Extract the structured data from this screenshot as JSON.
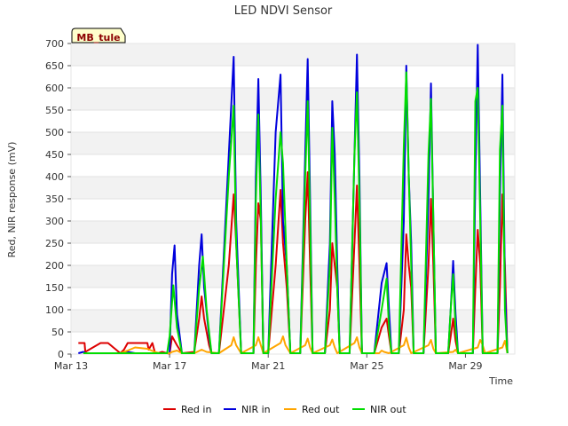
{
  "chart_data": {
    "type": "line",
    "title": "LED NDVI Sensor",
    "xlabel": "Time",
    "ylabel": "Red, NIR response (mV)",
    "site_label": "MB_tule",
    "ylim": [
      0,
      700
    ],
    "yticks": [
      0,
      50,
      100,
      150,
      200,
      250,
      300,
      350,
      400,
      450,
      500,
      550,
      600,
      650,
      700
    ],
    "xlim": [
      0,
      18
    ],
    "xticks": [
      {
        "label": "Mar 13",
        "day": 0
      },
      {
        "label": "Mar 17",
        "day": 4
      },
      {
        "label": "Mar 21",
        "day": 8
      },
      {
        "label": "Mar 25",
        "day": 12
      },
      {
        "label": "Mar 29",
        "day": 16
      }
    ],
    "grid": "horizontal bands",
    "legend_position": "bottom",
    "series": [
      {
        "name": "Red in",
        "color": "#dd0000",
        "x": [
          0.3,
          0.55,
          0.58,
          1.2,
          1.5,
          2.0,
          2.15,
          2.3,
          3.1,
          3.15,
          3.3,
          3.4,
          3.5,
          3.7,
          3.9,
          4.0,
          4.1,
          4.3,
          4.5,
          5.0,
          5.2,
          5.3,
          5.4,
          5.6,
          5.7,
          6.0,
          6.4,
          6.6,
          6.7,
          6.9,
          7.4,
          7.5,
          7.6,
          7.7,
          7.8,
          8.0,
          8.3,
          8.5,
          8.6,
          8.75,
          8.9,
          9.3,
          9.5,
          9.6,
          9.7,
          9.8,
          10.3,
          10.5,
          10.6,
          10.7,
          10.8,
          10.9,
          11.3,
          11.5,
          11.6,
          11.7,
          11.8,
          12.3,
          12.6,
          12.8,
          12.9,
          13.0,
          13.3,
          13.5,
          13.6,
          13.7,
          13.8,
          13.9,
          14.3,
          14.5,
          14.6,
          14.7,
          14.8,
          15.3,
          15.4,
          15.5,
          15.6,
          15.7,
          16.3,
          16.4,
          16.5,
          16.6,
          16.7,
          17.3,
          17.4,
          17.5,
          17.6,
          17.7
        ],
        "y": [
          25,
          25,
          5,
          25,
          25,
          2,
          10,
          25,
          25,
          10,
          25,
          5,
          2,
          5,
          2,
          1,
          40,
          20,
          2,
          5,
          80,
          130,
          80,
          20,
          2,
          2,
          200,
          360,
          250,
          2,
          2,
          200,
          340,
          300,
          2,
          2,
          200,
          370,
          250,
          150,
          2,
          2,
          300,
          410,
          200,
          2,
          2,
          100,
          250,
          200,
          150,
          2,
          2,
          250,
          380,
          200,
          2,
          2,
          60,
          80,
          40,
          2,
          2,
          100,
          270,
          200,
          150,
          2,
          2,
          200,
          350,
          200,
          2,
          2,
          40,
          80,
          30,
          2,
          2,
          150,
          280,
          200,
          2,
          2,
          150,
          360,
          200,
          2
        ]
      },
      {
        "name": "NIR in",
        "color": "#0000dd",
        "x": [
          0.3,
          0.5,
          0.6,
          2.0,
          2.3,
          2.6,
          3.1,
          3.4,
          3.5,
          3.6,
          3.7,
          3.9,
          4.0,
          4.1,
          4.2,
          4.3,
          4.5,
          5.0,
          5.2,
          5.3,
          5.4,
          5.6,
          5.7,
          6.0,
          6.4,
          6.6,
          6.7,
          6.9,
          7.4,
          7.5,
          7.6,
          7.7,
          7.8,
          8.0,
          8.3,
          8.5,
          8.6,
          8.75,
          8.9,
          9.3,
          9.5,
          9.6,
          9.7,
          9.8,
          10.3,
          10.5,
          10.6,
          10.7,
          10.8,
          10.9,
          11.3,
          11.5,
          11.6,
          11.7,
          11.8,
          12.3,
          12.6,
          12.8,
          12.9,
          13.0,
          13.3,
          13.5,
          13.6,
          13.7,
          13.8,
          13.9,
          14.3,
          14.5,
          14.6,
          14.7,
          14.8,
          15.3,
          15.4,
          15.5,
          15.6,
          15.7,
          16.3,
          16.4,
          16.5,
          16.6,
          16.7,
          17.3,
          17.4,
          17.5,
          17.6,
          17.7
        ],
        "y": [
          2,
          5,
          2,
          2,
          5,
          2,
          2,
          2,
          2,
          2,
          2,
          2,
          2,
          180,
          245,
          90,
          2,
          2,
          200,
          270,
          150,
          40,
          2,
          2,
          450,
          670,
          300,
          2,
          2,
          400,
          620,
          350,
          2,
          2,
          500,
          630,
          300,
          200,
          2,
          2,
          450,
          665,
          350,
          2,
          2,
          250,
          570,
          450,
          200,
          2,
          2,
          450,
          675,
          400,
          2,
          2,
          160,
          205,
          100,
          2,
          2,
          300,
          650,
          400,
          250,
          2,
          2,
          350,
          610,
          300,
          2,
          2,
          100,
          210,
          90,
          2,
          2,
          400,
          697,
          350,
          2,
          2,
          350,
          630,
          150,
          2
        ]
      },
      {
        "name": "Red out",
        "color": "#ffa500",
        "x": [
          0.5,
          2.0,
          2.3,
          2.6,
          3.1,
          3.4,
          3.6,
          4.0,
          4.1,
          4.3,
          4.5,
          5.0,
          5.3,
          5.5,
          6.0,
          6.5,
          6.6,
          6.7,
          6.9,
          7.5,
          7.6,
          7.7,
          7.8,
          8.5,
          8.6,
          8.7,
          8.9,
          9.5,
          9.6,
          9.7,
          9.8,
          10.5,
          10.6,
          10.7,
          10.8,
          11.5,
          11.6,
          11.7,
          11.8,
          12.5,
          12.6,
          12.7,
          12.9,
          13.5,
          13.6,
          13.7,
          13.8,
          14.5,
          14.6,
          14.7,
          14.8,
          15.5,
          15.6,
          15.7,
          16.5,
          16.6,
          16.7,
          16.8,
          17.5,
          17.6,
          17.7
        ],
        "y": [
          2,
          2,
          8,
          15,
          12,
          5,
          2,
          2,
          5,
          8,
          2,
          2,
          10,
          5,
          2,
          20,
          38,
          20,
          2,
          20,
          38,
          20,
          2,
          25,
          40,
          20,
          2,
          20,
          35,
          15,
          2,
          20,
          33,
          15,
          2,
          25,
          38,
          15,
          2,
          2,
          8,
          5,
          2,
          20,
          37,
          15,
          2,
          20,
          32,
          12,
          2,
          5,
          10,
          2,
          15,
          32,
          20,
          2,
          15,
          30,
          2
        ]
      },
      {
        "name": "NIR out",
        "color": "#00dd00",
        "x": [
          0.5,
          3.9,
          4.0,
          4.15,
          4.3,
          4.5,
          5.0,
          5.2,
          5.35,
          5.5,
          5.7,
          6.0,
          6.4,
          6.6,
          6.7,
          6.9,
          7.4,
          7.5,
          7.6,
          7.7,
          7.8,
          8.0,
          8.3,
          8.5,
          8.6,
          8.75,
          8.9,
          9.3,
          9.5,
          9.6,
          9.7,
          9.8,
          10.3,
          10.5,
          10.6,
          10.7,
          10.8,
          10.9,
          11.3,
          11.5,
          11.6,
          11.7,
          11.8,
          12.3,
          12.6,
          12.8,
          12.9,
          13.0,
          13.3,
          13.5,
          13.6,
          13.7,
          13.8,
          13.9,
          14.3,
          14.5,
          14.6,
          14.7,
          14.8,
          15.3,
          15.4,
          15.5,
          15.6,
          15.7,
          16.3,
          16.4,
          16.5,
          16.6,
          16.7,
          17.3,
          17.4,
          17.5,
          17.6,
          17.7
        ],
        "y": [
          2,
          2,
          40,
          155,
          60,
          2,
          2,
          150,
          220,
          100,
          2,
          2,
          400,
          560,
          250,
          2,
          2,
          350,
          540,
          300,
          2,
          2,
          350,
          500,
          430,
          200,
          2,
          2,
          400,
          570,
          300,
          2,
          2,
          200,
          510,
          350,
          150,
          2,
          2,
          450,
          590,
          350,
          2,
          2,
          100,
          170,
          60,
          2,
          2,
          470,
          635,
          400,
          200,
          2,
          2,
          450,
          575,
          300,
          2,
          2,
          100,
          180,
          60,
          2,
          2,
          570,
          600,
          300,
          2,
          2,
          460,
          560,
          100,
          2
        ]
      }
    ]
  }
}
